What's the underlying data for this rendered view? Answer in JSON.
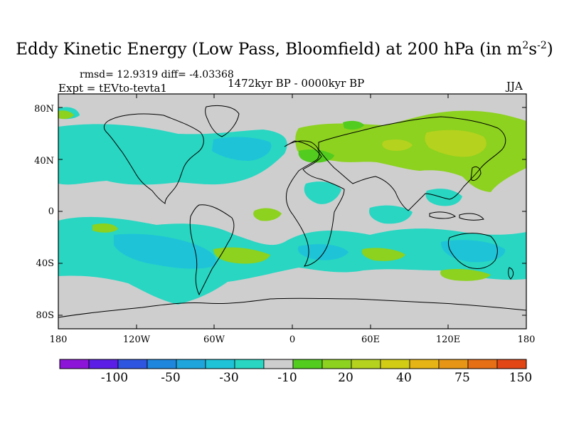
{
  "title": {
    "main": "Eddy Kinetic Energy (Low Pass, Bloomfield) at 200 hPa (in m",
    "sup1": "2",
    "mid": "s",
    "sup2": "-2",
    "end": ")"
  },
  "stats": "rmsd= 12.9319 diff= -4.03368",
  "experiment": "Expt = tEVto-tevta1",
  "period": "1472kyr BP - 0000kyr BP",
  "season": "JJA",
  "lat_ticks": [
    "80N",
    "40N",
    "0",
    "40S",
    "80S"
  ],
  "lon_ticks": [
    "180",
    "120W",
    "60W",
    "0",
    "60E",
    "120E",
    "180"
  ],
  "colorbar": {
    "colors": [
      "#8c14d8",
      "#5a1ee6",
      "#2e55e0",
      "#1e86dc",
      "#1ea6dc",
      "#1ec3d8",
      "#28d6c2",
      "#cecece",
      "#52cc1e",
      "#8cd21e",
      "#b4d21e",
      "#d2cc14",
      "#e6b414",
      "#e69614",
      "#e66e14",
      "#e14614"
    ],
    "labels": [
      "-100",
      "-50",
      "-30",
      "-10",
      "20",
      "40",
      "75",
      "150"
    ]
  },
  "field_colors": {
    "background": "#cecece",
    "neg_weak": "#28d6c2",
    "neg_mid": "#1ec3d8",
    "neg_strong": "#1ea6dc",
    "pos_weak": "#8cd21e",
    "pos_mid": "#b4d21e",
    "pos_strong": "#52cc1e"
  }
}
